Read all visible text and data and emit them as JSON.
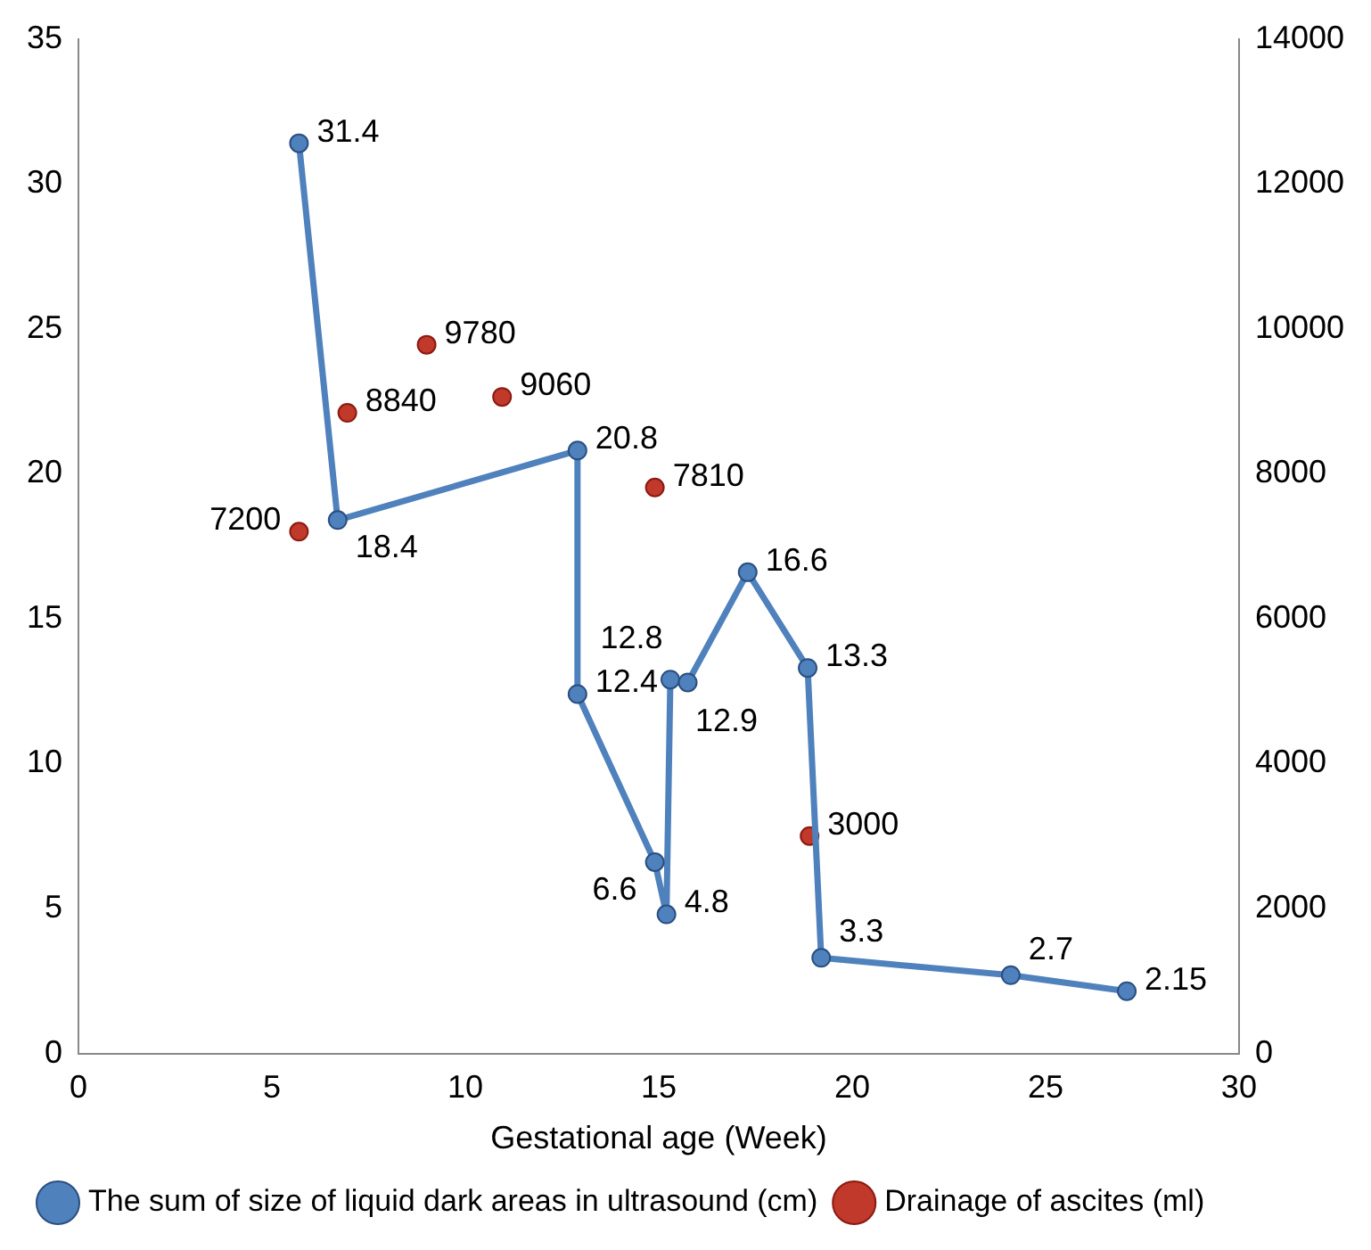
{
  "chart_data": {
    "type": "line",
    "xlabel": "Gestational age (Week)",
    "x": [
      5.7,
      6.7,
      12.9,
      12.9,
      14.9,
      15.2,
      15.3,
      15.75,
      17.3,
      18.85,
      19.2,
      24.1,
      27.1
    ],
    "series": [
      {
        "name": "The sum of size of liquid dark areas in ultrasound (cm)",
        "color": "#4f81bd",
        "values": [
          31.4,
          18.4,
          20.8,
          12.4,
          6.6,
          4.8,
          12.9,
          12.8,
          16.6,
          13.3,
          3.3,
          2.7,
          2.15
        ]
      },
      {
        "name": "Drainage of ascites (ml)",
        "type": "scatter",
        "axis": "y2",
        "color": "#c0392b",
        "x": [
          5.7,
          6.95,
          9.0,
          10.95,
          14.9,
          18.9
        ],
        "values": [
          7200,
          8840,
          9780,
          9060,
          7810,
          3000
        ]
      }
    ],
    "xlim": [
      0,
      30
    ],
    "xticks": [
      0,
      5,
      10,
      15,
      20,
      25,
      30
    ],
    "ylim": [
      0,
      35
    ],
    "yticks": [
      0,
      5,
      10,
      15,
      20,
      25,
      30,
      35
    ],
    "y2lim": [
      0,
      14000
    ],
    "y2ticks": [
      0,
      2000,
      4000,
      6000,
      8000,
      10000,
      12000,
      14000
    ],
    "data_labels": true,
    "legend": "bottom",
    "marker": "circle",
    "line_style": "solid",
    "grid": false
  }
}
